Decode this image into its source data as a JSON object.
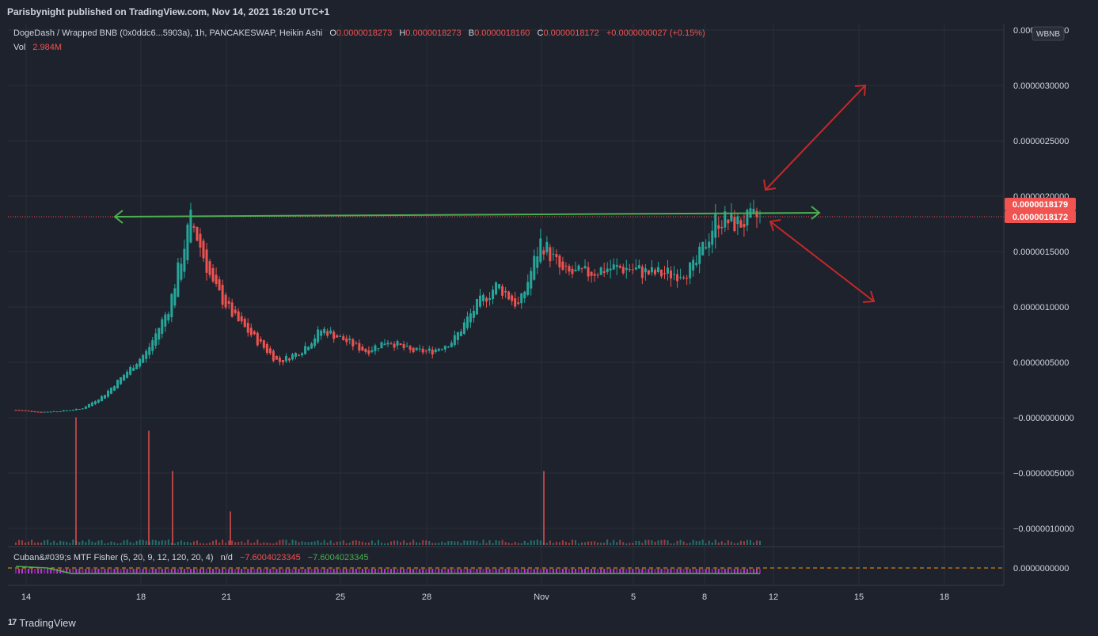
{
  "header": {
    "publisher": "Parisbynight published on TradingView.com, Nov 14, 2021 16:20 UTC+1"
  },
  "legend": {
    "symbol": "DogeDash / Wrapped BNB (0x0ddc6...5903a), 1h, PANCAKESWAP, Heikin Ashi",
    "o_label": "O",
    "o_value": "0.0000018273",
    "h_label": "H",
    "h_value": "0.0000018273",
    "l_label": "B",
    "l_value": "0.0000018160",
    "c_label": "C",
    "c_value": "0.0000018172",
    "change": "+0.0000000027 (+0.15%)",
    "vol_label": "Vol",
    "vol_value": "2.984M"
  },
  "indicator": {
    "label": "Cuban&#039;s MTF Fisher (5, 20, 9, 12, 120, 20, 4)",
    "na": "n/d",
    "value1": "−7.6004023345",
    "value2": "−7.6004023345",
    "axis_value": "0.0000000000"
  },
  "price_axis": {
    "currency_badge": "WBNB",
    "price_tag_1": "0.0000018179",
    "price_tag_2": "0.0000018172"
  },
  "footer": {
    "brand": "TradingView"
  },
  "colors": {
    "background": "#1e222d",
    "grid": "#2a2e39",
    "up": "#26a69a",
    "down": "#ef5350",
    "annotation_green": "#4caf50",
    "annotation_red": "#c62828",
    "price_tag": "#f05350"
  },
  "chart_data": {
    "type": "candlestick",
    "chart_style": "Heikin Ashi",
    "x_ticks": [
      "14",
      "18",
      "21",
      "25",
      "28",
      "Nov",
      "5",
      "8",
      "12",
      "15",
      "18"
    ],
    "y_ticks": [
      "0.0000035000",
      "0.0000030000",
      "0.0000025000",
      "0.0000020000",
      "0.0000015000",
      "0.0000010000",
      "0.0000005000",
      "−0.0000000000",
      "−0.0000005000",
      "−0.0000010000"
    ],
    "y_range": [
      -1.1e-06,
      3.5e-06
    ],
    "series": [
      {
        "name": "Heikin Ashi close (approx.)",
        "dates": [
          "Oct 13",
          "Oct 14",
          "Oct 15",
          "Oct 16",
          "Oct 17",
          "Oct 18",
          "Oct 19",
          "Oct 19 12h",
          "Oct 20",
          "Oct 20 08h",
          "Oct 20 18h",
          "Oct 21",
          "Oct 22",
          "Oct 22 06h",
          "Oct 23",
          "Oct 24",
          "Oct 25",
          "Oct 26",
          "Oct 27",
          "Oct 28",
          "Oct 29",
          "Oct 30",
          "Oct 31",
          "Nov 1",
          "Nov 2",
          "Nov 3",
          "Nov 4",
          "Nov 5",
          "Nov 6",
          "Nov 7",
          "Nov 8",
          "Nov 9",
          "Nov 10",
          "Nov 10 18h",
          "Nov 11"
        ],
        "values": [
          7e-08,
          5e-08,
          6e-08,
          8e-08,
          2e-07,
          4e-07,
          6e-07,
          1e-06,
          1.8e-06,
          1.2e-06,
          9e-07,
          7e-07,
          5e-07,
          6e-07,
          8e-07,
          7e-07,
          6e-07,
          7e-07,
          6e-07,
          6e-07,
          7e-07,
          1e-06,
          1.2e-06,
          1e-06,
          1.6e-06,
          1.3e-06,
          1.3e-06,
          1.35e-06,
          1.35e-06,
          1.3e-06,
          1.3e-06,
          1.35e-06,
          1.8e-06,
          1.75e-06,
          1.8172e-06
        ]
      }
    ],
    "spikes": [
      {
        "date": "Oct 16",
        "volume_rel": 0.95
      },
      {
        "date": "Oct 18",
        "volume_rel": 0.85
      },
      {
        "date": "Oct 19",
        "volume_rel": 0.55
      },
      {
        "date": "Oct 21",
        "volume_rel": 0.25
      },
      {
        "date": "Nov 1",
        "volume_rel": 0.55
      }
    ],
    "annotations": [
      {
        "type": "horizontal-resistance",
        "price": 1.8e-06,
        "color": "green"
      },
      {
        "type": "arrow-up",
        "direction": "breakout",
        "color": "red"
      },
      {
        "type": "arrow-down",
        "direction": "rejection",
        "color": "red"
      }
    ]
  }
}
